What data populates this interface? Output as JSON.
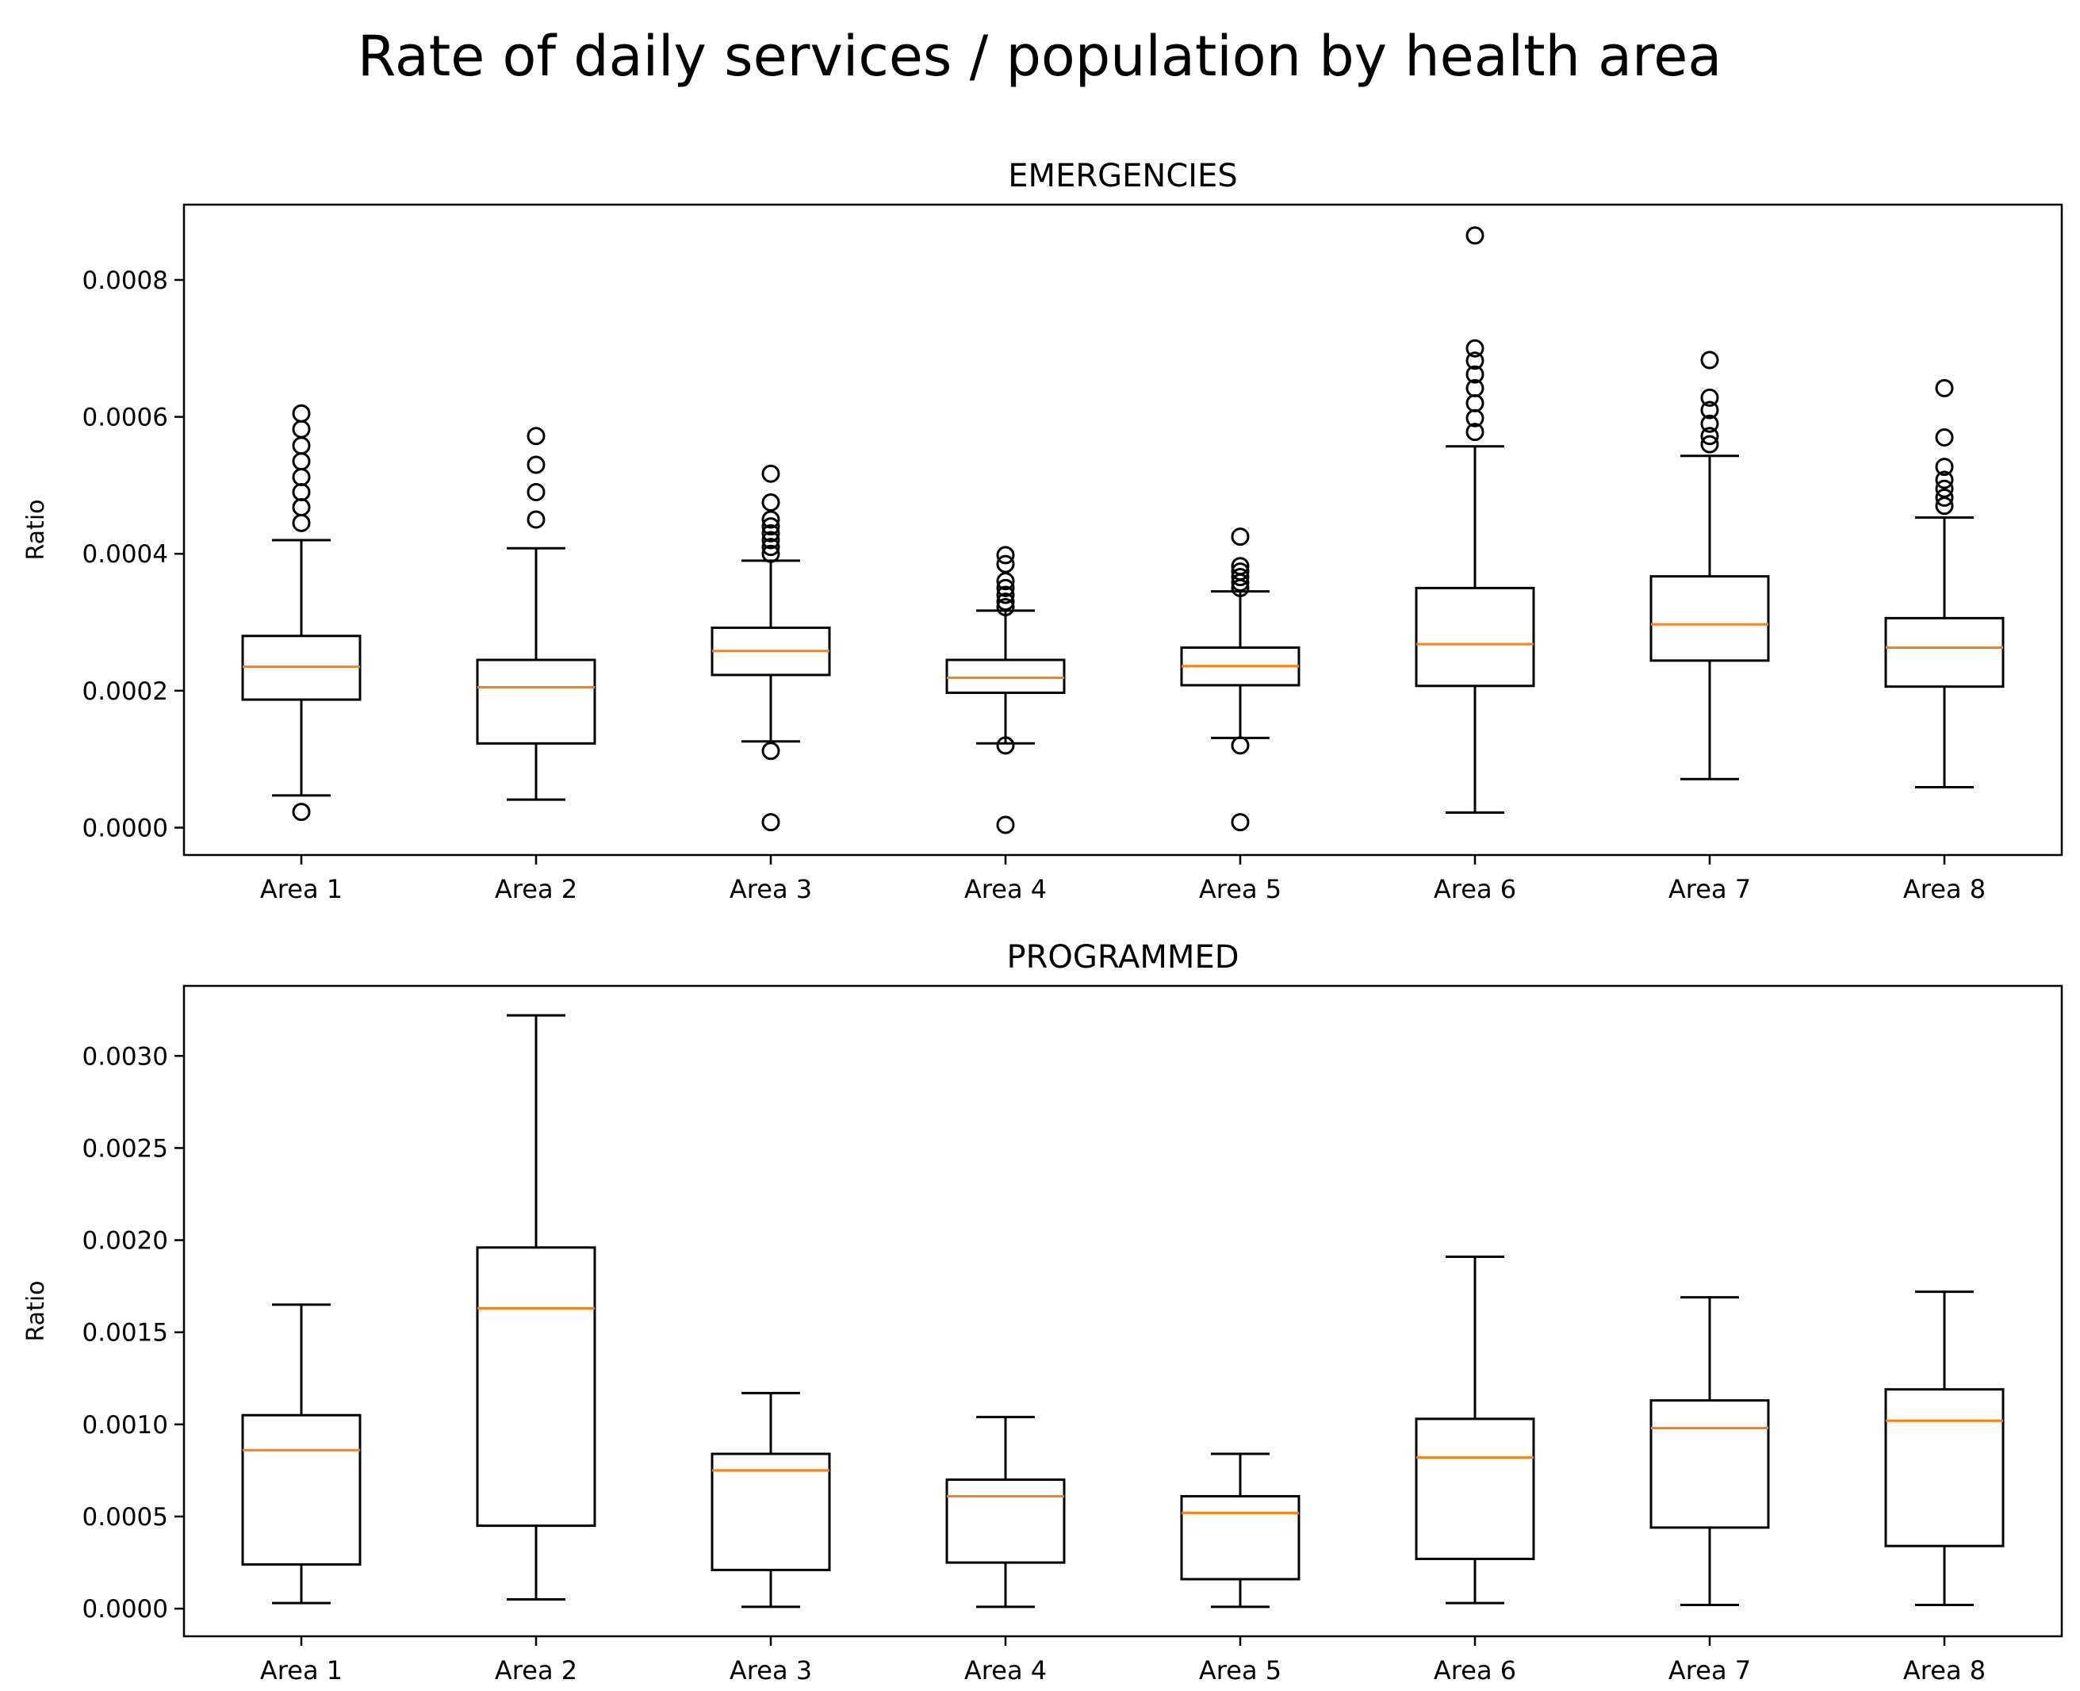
{
  "figure": {
    "title": "Rate of daily services / population by health area"
  },
  "chart_data": [
    {
      "type": "boxplot",
      "title": "EMERGENCIES",
      "ylabel": "Ratio",
      "xlabel": "",
      "categories": [
        "Area 1",
        "Area 2",
        "Area 3",
        "Area 4",
        "Area 5",
        "Area 6",
        "Area 7",
        "Area 8"
      ],
      "ylim": [
        -4e-05,
        0.00091
      ],
      "yticks": [
        0,
        0.0002,
        0.0004,
        0.0006,
        0.0008
      ],
      "ytick_labels": [
        "0.0000",
        "0.0002",
        "0.0004",
        "0.0006",
        "0.0008"
      ],
      "boxes": [
        {
          "whislo": 4.7e-05,
          "q1": 0.000187,
          "med": 0.000235,
          "q3": 0.00028,
          "whishi": 0.00042,
          "fliers": [
            2.3e-05,
            0.000445,
            0.000468,
            0.00049,
            0.000512,
            0.000535,
            0.000558,
            0.000582,
            0.000605
          ]
        },
        {
          "whislo": 4.1e-05,
          "q1": 0.000123,
          "med": 0.000205,
          "q3": 0.000245,
          "whishi": 0.000408,
          "fliers": [
            0.00045,
            0.00049,
            0.00053,
            0.000572
          ]
        },
        {
          "whislo": 0.000126,
          "q1": 0.000223,
          "med": 0.000258,
          "q3": 0.000292,
          "whishi": 0.00039,
          "fliers": [
            8e-06,
            0.000112,
            0.0004,
            0.00041,
            0.00042,
            0.00043,
            0.00044,
            0.00045,
            0.000475,
            0.000517
          ]
        },
        {
          "whislo": 0.000123,
          "q1": 0.000197,
          "med": 0.000219,
          "q3": 0.000245,
          "whishi": 0.000317,
          "fliers": [
            4e-06,
            0.00012,
            0.000322,
            0.00033,
            0.00034,
            0.00035,
            0.00036,
            0.000385,
            0.000398
          ]
        },
        {
          "whislo": 0.000131,
          "q1": 0.000208,
          "med": 0.000236,
          "q3": 0.000263,
          "whishi": 0.000345,
          "fliers": [
            8e-06,
            0.00012,
            0.00035,
            0.000358,
            0.000366,
            0.000374,
            0.000382,
            0.000425
          ]
        },
        {
          "whislo": 2.2e-05,
          "q1": 0.000207,
          "med": 0.000268,
          "q3": 0.00035,
          "whishi": 0.000557,
          "fliers": [
            0.000578,
            0.000598,
            0.00062,
            0.000642,
            0.000662,
            0.000682,
            0.0007,
            0.000865
          ]
        },
        {
          "whislo": 7.1e-05,
          "q1": 0.000244,
          "med": 0.000297,
          "q3": 0.000367,
          "whishi": 0.000543,
          "fliers": [
            0.00056,
            0.000572,
            0.00059,
            0.00061,
            0.000628,
            0.000683
          ]
        },
        {
          "whislo": 5.9e-05,
          "q1": 0.000206,
          "med": 0.000263,
          "q3": 0.000306,
          "whishi": 0.000453,
          "fliers": [
            0.00047,
            0.000482,
            0.000495,
            0.000508,
            0.000527,
            0.00057,
            0.000642
          ]
        }
      ]
    },
    {
      "type": "boxplot",
      "title": "PROGRAMMED",
      "ylabel": "Ratio",
      "xlabel": "",
      "categories": [
        "Area 1",
        "Area 2",
        "Area 3",
        "Area 4",
        "Area 5",
        "Area 6",
        "Area 7",
        "Area 8"
      ],
      "ylim": [
        -0.00015,
        0.00338
      ],
      "yticks": [
        0,
        0.0005,
        0.001,
        0.0015,
        0.002,
        0.0025,
        0.003
      ],
      "ytick_labels": [
        "0.0000",
        "0.0005",
        "0.0010",
        "0.0015",
        "0.0020",
        "0.0025",
        "0.0030"
      ],
      "boxes": [
        {
          "whislo": 3e-05,
          "q1": 0.00024,
          "med": 0.00086,
          "q3": 0.00105,
          "whishi": 0.00165,
          "fliers": []
        },
        {
          "whislo": 5e-05,
          "q1": 0.00045,
          "med": 0.00163,
          "q3": 0.00196,
          "whishi": 0.00322,
          "fliers": []
        },
        {
          "whislo": 1e-05,
          "q1": 0.00021,
          "med": 0.00075,
          "q3": 0.00084,
          "whishi": 0.00117,
          "fliers": []
        },
        {
          "whislo": 1e-05,
          "q1": 0.00025,
          "med": 0.00061,
          "q3": 0.0007,
          "whishi": 0.00104,
          "fliers": []
        },
        {
          "whislo": 1e-05,
          "q1": 0.00016,
          "med": 0.00052,
          "q3": 0.00061,
          "whishi": 0.00084,
          "fliers": []
        },
        {
          "whislo": 3e-05,
          "q1": 0.00027,
          "med": 0.00082,
          "q3": 0.00103,
          "whishi": 0.00191,
          "fliers": []
        },
        {
          "whislo": 2e-05,
          "q1": 0.00044,
          "med": 0.00098,
          "q3": 0.00113,
          "whishi": 0.00169,
          "fliers": []
        },
        {
          "whislo": 2e-05,
          "q1": 0.00034,
          "med": 0.00102,
          "q3": 0.00119,
          "whishi": 0.00172,
          "fliers": []
        }
      ]
    }
  ],
  "colors": {
    "box": "#000000",
    "median": "#ff7f0e",
    "background": "#ffffff"
  }
}
